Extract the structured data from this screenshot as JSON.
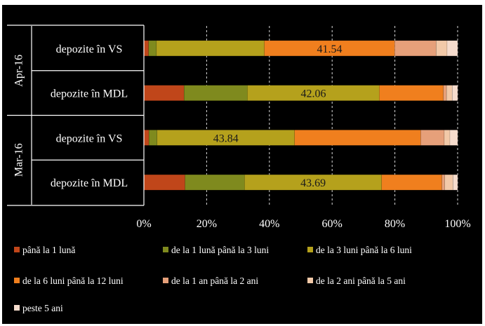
{
  "chart_data": {
    "type": "bar",
    "orientation": "horizontal",
    "stacked": "percent",
    "groups": [
      "Apr-16",
      "Mar-16"
    ],
    "categories": [
      {
        "group": "Apr-16",
        "label": "depozite în VS"
      },
      {
        "group": "Apr-16",
        "label": "depozite în MDL"
      },
      {
        "group": "Mar-16",
        "label": "depozite în VS"
      },
      {
        "group": "Mar-16",
        "label": "depozite în MDL"
      }
    ],
    "xlim": [
      0,
      100
    ],
    "xticks": [
      "0%",
      "20%",
      "40%",
      "60%",
      "80%",
      "100%"
    ],
    "grid": "vertical dashed",
    "legend_position": "bottom",
    "series": [
      {
        "name": "până la 1 lună",
        "color": "#c0461a",
        "values": [
          1.5,
          12.8,
          1.6,
          13.1
        ]
      },
      {
        "name": "de la 1 lună până la 3 luni",
        "color": "#7f8a1e",
        "values": [
          2.5,
          20.2,
          2.6,
          19.0
        ]
      },
      {
        "name": "de la 3 luni până la 6 luni",
        "color": "#b5a11c",
        "values": [
          34.4,
          42.06,
          43.84,
          43.69
        ]
      },
      {
        "name": "de la 6 luni până la 12 luni",
        "color": "#f07f1e",
        "values": [
          41.54,
          20.4,
          40.2,
          19.2
        ]
      },
      {
        "name": "de la 1 an până la 2 ani",
        "color": "#e6a07a",
        "values": [
          13.2,
          1.0,
          7.5,
          0.9
        ]
      },
      {
        "name": "de la 2 ani până la 5 ani",
        "color": "#f2c9a8",
        "values": [
          3.5,
          1.8,
          1.8,
          2.6
        ]
      },
      {
        "name": "peste 5 ani",
        "color": "#f6dccd",
        "values": [
          3.36,
          1.74,
          2.46,
          1.51
        ]
      }
    ],
    "data_labels": [
      {
        "row": 0,
        "series": 3,
        "text": "41.54"
      },
      {
        "row": 1,
        "series": 2,
        "text": "42.06"
      },
      {
        "row": 2,
        "series": 2,
        "text": "43.84"
      },
      {
        "row": 3,
        "series": 2,
        "text": "43.69"
      }
    ]
  }
}
